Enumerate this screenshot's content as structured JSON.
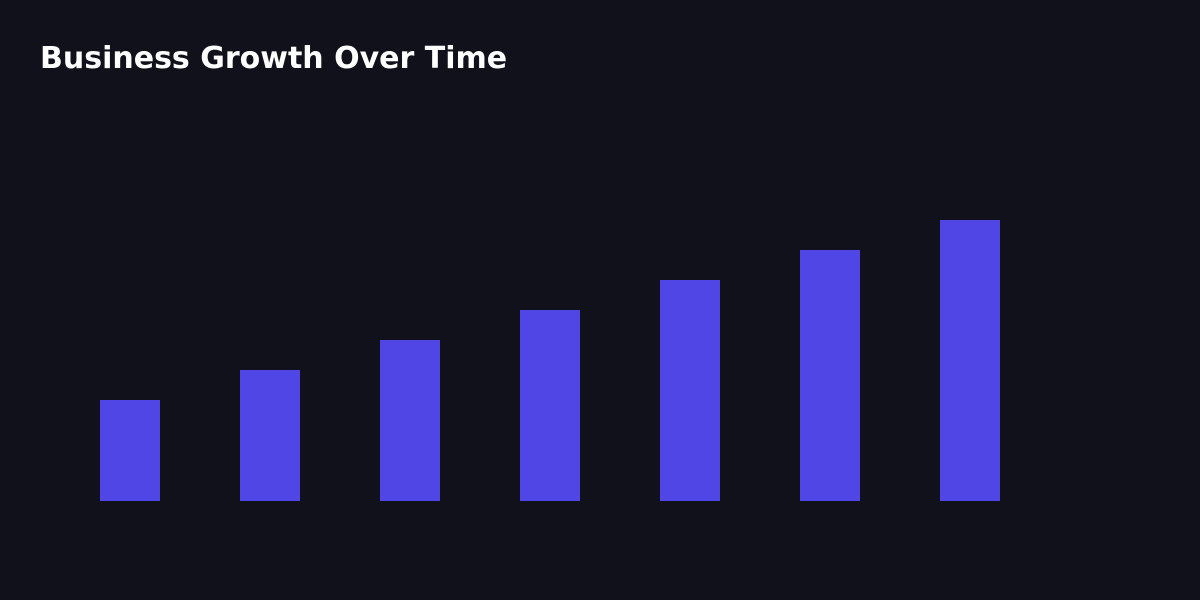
{
  "colors": {
    "background": "#10111a",
    "bar": "#5046e5",
    "title": "#ffffff"
  },
  "chart_data": {
    "type": "bar",
    "title": "Business Growth Over Time",
    "xlabel": "",
    "ylabel": "",
    "categories": [
      "",
      "",
      "",
      "",
      "",
      "",
      ""
    ],
    "values": [
      100,
      130,
      160,
      190,
      220,
      250,
      280
    ],
    "ylim": [
      0,
      280
    ],
    "grid": false,
    "legend": "none",
    "axes_visible": false
  }
}
